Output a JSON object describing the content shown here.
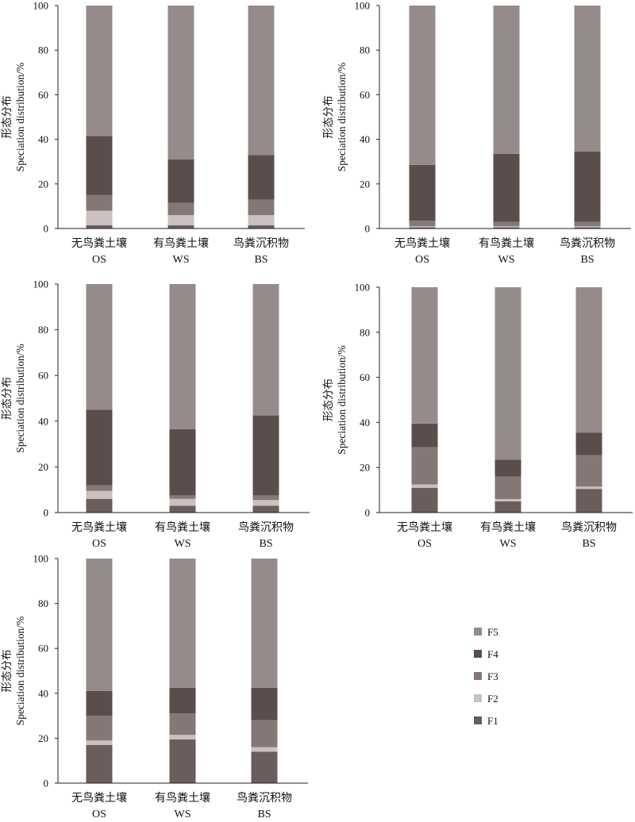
{
  "legend": [
    {
      "key": "F5",
      "label": "F5",
      "color": "#958b8a"
    },
    {
      "key": "F4",
      "label": "F4",
      "color": "#5a4d4b"
    },
    {
      "key": "F3",
      "label": "F3",
      "color": "#847876"
    },
    {
      "key": "F2",
      "label": "F2",
      "color": "#c9c0bf"
    },
    {
      "key": "F1",
      "label": "F1",
      "color": "#6a5d5b"
    }
  ],
  "chart_data": [
    {
      "type": "bar",
      "stacked": true,
      "ylabel_cn": "形态分布",
      "ylabel_en": "Speciation distribution/%",
      "ylim": [
        0,
        100
      ],
      "yticks": [
        0,
        20,
        40,
        60,
        80,
        100
      ],
      "categories": [
        {
          "cn": "无鸟粪土壤",
          "en": "OS"
        },
        {
          "cn": "有鸟粪土壤",
          "en": "WS"
        },
        {
          "cn": "鸟粪沉积物",
          "en": "BS"
        }
      ],
      "series": [
        {
          "name": "F1",
          "values": [
            1.5,
            1.5,
            1.5
          ]
        },
        {
          "name": "F2",
          "values": [
            6.5,
            4.5,
            4.5
          ]
        },
        {
          "name": "F3",
          "values": [
            7,
            5.5,
            7
          ]
        },
        {
          "name": "F4",
          "values": [
            26.5,
            19.5,
            20
          ]
        },
        {
          "name": "F5",
          "values": [
            58.5,
            69,
            67
          ]
        }
      ]
    },
    {
      "type": "bar",
      "stacked": true,
      "ylabel_cn": "形态分布",
      "ylabel_en": "Speciation distribution/%",
      "ylim": [
        0,
        100
      ],
      "yticks": [
        0,
        20,
        40,
        60,
        80,
        100
      ],
      "categories": [
        {
          "cn": "无鸟粪土壤",
          "en": "OS"
        },
        {
          "cn": "有鸟粪土壤",
          "en": "WS"
        },
        {
          "cn": "鸟粪沉积物",
          "en": "BS"
        }
      ],
      "series": [
        {
          "name": "F1",
          "values": [
            0.5,
            0.5,
            0.5
          ]
        },
        {
          "name": "F2",
          "values": [
            0.5,
            0.5,
            0.5
          ]
        },
        {
          "name": "F3",
          "values": [
            2.5,
            2,
            2
          ]
        },
        {
          "name": "F4",
          "values": [
            25,
            30.5,
            31.5
          ]
        },
        {
          "name": "F5",
          "values": [
            71.5,
            66.5,
            65.5
          ]
        }
      ]
    },
    {
      "type": "bar",
      "stacked": true,
      "ylabel_cn": "形态分布",
      "ylabel_en": "Speciation distribution/%",
      "ylim": [
        0,
        100
      ],
      "yticks": [
        0,
        20,
        40,
        60,
        80,
        100
      ],
      "categories": [
        {
          "cn": "无鸟粪土壤",
          "en": "OS"
        },
        {
          "cn": "有鸟粪土壤",
          "en": "WS"
        },
        {
          "cn": "鸟粪沉积物",
          "en": "BS"
        }
      ],
      "series": [
        {
          "name": "F1",
          "values": [
            6,
            3,
            3
          ]
        },
        {
          "name": "F2",
          "values": [
            3.5,
            3,
            2.5
          ]
        },
        {
          "name": "F3",
          "values": [
            2.5,
            1.5,
            2
          ]
        },
        {
          "name": "F4",
          "values": [
            33,
            29,
            35
          ]
        },
        {
          "name": "F5",
          "values": [
            55,
            63.5,
            57.5
          ]
        }
      ]
    },
    {
      "type": "bar",
      "stacked": true,
      "ylabel_cn": "形态分布",
      "ylabel_en": "Speciation distribution/%",
      "ylim": [
        0,
        100
      ],
      "yticks": [
        0,
        20,
        40,
        60,
        80,
        100
      ],
      "categories": [
        {
          "cn": "无鸟粪土壤",
          "en": "OS"
        },
        {
          "cn": "有鸟粪土壤",
          "en": "WS"
        },
        {
          "cn": "鸟粪沉积物",
          "en": "BS"
        }
      ],
      "series": [
        {
          "name": "F1",
          "values": [
            11,
            5,
            10.5
          ]
        },
        {
          "name": "F2",
          "values": [
            1.5,
            1,
            1
          ]
        },
        {
          "name": "F3",
          "values": [
            16.5,
            10,
            14
          ]
        },
        {
          "name": "F4",
          "values": [
            10.5,
            7.5,
            10
          ]
        },
        {
          "name": "F5",
          "values": [
            60.5,
            76.5,
            64.5
          ]
        }
      ]
    },
    {
      "type": "bar",
      "stacked": true,
      "ylabel_cn": "形态分布",
      "ylabel_en": "Speciation distribution/%",
      "ylim": [
        0,
        100
      ],
      "yticks": [
        0,
        20,
        40,
        60,
        80,
        100
      ],
      "categories": [
        {
          "cn": "无鸟粪土壤",
          "en": "OS"
        },
        {
          "cn": "有鸟粪土壤",
          "en": "WS"
        },
        {
          "cn": "鸟粪沉积物",
          "en": "BS"
        }
      ],
      "series": [
        {
          "name": "F1",
          "values": [
            17,
            19.5,
            14
          ]
        },
        {
          "name": "F2",
          "values": [
            2,
            2,
            2
          ]
        },
        {
          "name": "F3",
          "values": [
            11,
            9.5,
            12
          ]
        },
        {
          "name": "F4",
          "values": [
            11,
            11.5,
            14.5
          ]
        },
        {
          "name": "F5",
          "values": [
            59,
            57.5,
            57.5
          ]
        }
      ]
    }
  ]
}
